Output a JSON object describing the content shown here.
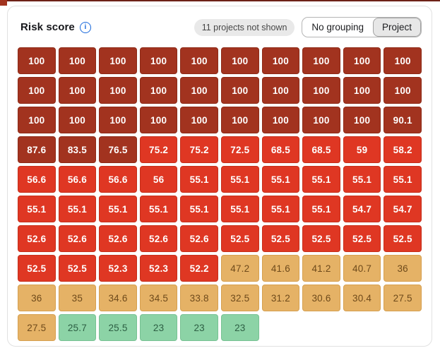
{
  "colors": {
    "critical_bg": "#a2331f",
    "critical_border": "#8d2a17",
    "high_bg": "#df3723",
    "high_border": "#c62e1a",
    "medium_bg": "#e5b266",
    "medium_border": "#d6a050",
    "medium_text": "#6e4a1b",
    "low_bg": "#8cd3a6",
    "low_border": "#77c293",
    "low_text": "#2d5f43",
    "accent_blue": "#1868db"
  },
  "header": {
    "title": "Risk score",
    "info_icon": "info-icon",
    "not_shown_badge": "11 projects not shown",
    "grouping": [
      {
        "label": "No grouping",
        "selected": false
      },
      {
        "label": "Project",
        "selected": true
      }
    ]
  },
  "grid": {
    "columns": 10,
    "rows": [
      [
        [
          "100",
          "critical"
        ],
        [
          "100",
          "critical"
        ],
        [
          "100",
          "critical"
        ],
        [
          "100",
          "critical"
        ],
        [
          "100",
          "critical"
        ],
        [
          "100",
          "critical"
        ],
        [
          "100",
          "critical"
        ],
        [
          "100",
          "critical"
        ],
        [
          "100",
          "critical"
        ],
        [
          "100",
          "critical"
        ]
      ],
      [
        [
          "100",
          "critical"
        ],
        [
          "100",
          "critical"
        ],
        [
          "100",
          "critical"
        ],
        [
          "100",
          "critical"
        ],
        [
          "100",
          "critical"
        ],
        [
          "100",
          "critical"
        ],
        [
          "100",
          "critical"
        ],
        [
          "100",
          "critical"
        ],
        [
          "100",
          "critical"
        ],
        [
          "100",
          "critical"
        ]
      ],
      [
        [
          "100",
          "critical"
        ],
        [
          "100",
          "critical"
        ],
        [
          "100",
          "critical"
        ],
        [
          "100",
          "critical"
        ],
        [
          "100",
          "critical"
        ],
        [
          "100",
          "critical"
        ],
        [
          "100",
          "critical"
        ],
        [
          "100",
          "critical"
        ],
        [
          "100",
          "critical"
        ],
        [
          "90.1",
          "critical"
        ]
      ],
      [
        [
          "87.6",
          "critical"
        ],
        [
          "83.5",
          "critical"
        ],
        [
          "76.5",
          "critical"
        ],
        [
          "75.2",
          "high"
        ],
        [
          "75.2",
          "high"
        ],
        [
          "72.5",
          "high"
        ],
        [
          "68.5",
          "high"
        ],
        [
          "68.5",
          "high"
        ],
        [
          "59",
          "high"
        ],
        [
          "58.2",
          "high"
        ]
      ],
      [
        [
          "56.6",
          "high"
        ],
        [
          "56.6",
          "high"
        ],
        [
          "56.6",
          "high"
        ],
        [
          "56",
          "high"
        ],
        [
          "55.1",
          "high"
        ],
        [
          "55.1",
          "high"
        ],
        [
          "55.1",
          "high"
        ],
        [
          "55.1",
          "high"
        ],
        [
          "55.1",
          "high"
        ],
        [
          "55.1",
          "high"
        ]
      ],
      [
        [
          "55.1",
          "high"
        ],
        [
          "55.1",
          "high"
        ],
        [
          "55.1",
          "high"
        ],
        [
          "55.1",
          "high"
        ],
        [
          "55.1",
          "high"
        ],
        [
          "55.1",
          "high"
        ],
        [
          "55.1",
          "high"
        ],
        [
          "55.1",
          "high"
        ],
        [
          "54.7",
          "high"
        ],
        [
          "54.7",
          "high"
        ]
      ],
      [
        [
          "52.6",
          "high"
        ],
        [
          "52.6",
          "high"
        ],
        [
          "52.6",
          "high"
        ],
        [
          "52.6",
          "high"
        ],
        [
          "52.6",
          "high"
        ],
        [
          "52.5",
          "high"
        ],
        [
          "52.5",
          "high"
        ],
        [
          "52.5",
          "high"
        ],
        [
          "52.5",
          "high"
        ],
        [
          "52.5",
          "high"
        ]
      ],
      [
        [
          "52.5",
          "high"
        ],
        [
          "52.5",
          "high"
        ],
        [
          "52.3",
          "high"
        ],
        [
          "52.3",
          "high"
        ],
        [
          "52.2",
          "high"
        ],
        [
          "47.2",
          "medium"
        ],
        [
          "41.6",
          "medium"
        ],
        [
          "41.2",
          "medium"
        ],
        [
          "40.7",
          "medium"
        ],
        [
          "36",
          "medium"
        ]
      ],
      [
        [
          "36",
          "medium"
        ],
        [
          "35",
          "medium"
        ],
        [
          "34.6",
          "medium"
        ],
        [
          "34.5",
          "medium"
        ],
        [
          "33.8",
          "medium"
        ],
        [
          "32.5",
          "medium"
        ],
        [
          "31.2",
          "medium"
        ],
        [
          "30.6",
          "medium"
        ],
        [
          "30.4",
          "medium"
        ],
        [
          "27.5",
          "medium"
        ]
      ],
      [
        [
          "27.5",
          "medium"
        ],
        [
          "25.7",
          "low"
        ],
        [
          "25.5",
          "low"
        ],
        [
          "23",
          "low"
        ],
        [
          "23",
          "low"
        ],
        [
          "23",
          "low"
        ]
      ]
    ]
  }
}
